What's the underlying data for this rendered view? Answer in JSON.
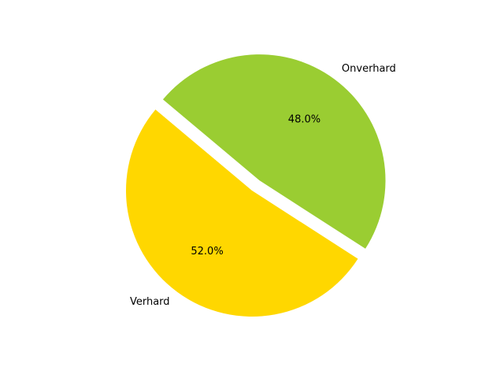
{
  "chart_data": {
    "type": "pie",
    "title": "",
    "slices": [
      {
        "label": "Verhard",
        "value": 52.0,
        "pct_label": "52.0%",
        "color": "#FFD700",
        "exploded": false
      },
      {
        "label": "Onverhard",
        "value": 48.0,
        "pct_label": "48.0%",
        "color": "#9ACD32",
        "exploded": true
      }
    ],
    "start_angle_deg": 140,
    "direction": "counterclockwise",
    "legend": "none"
  }
}
